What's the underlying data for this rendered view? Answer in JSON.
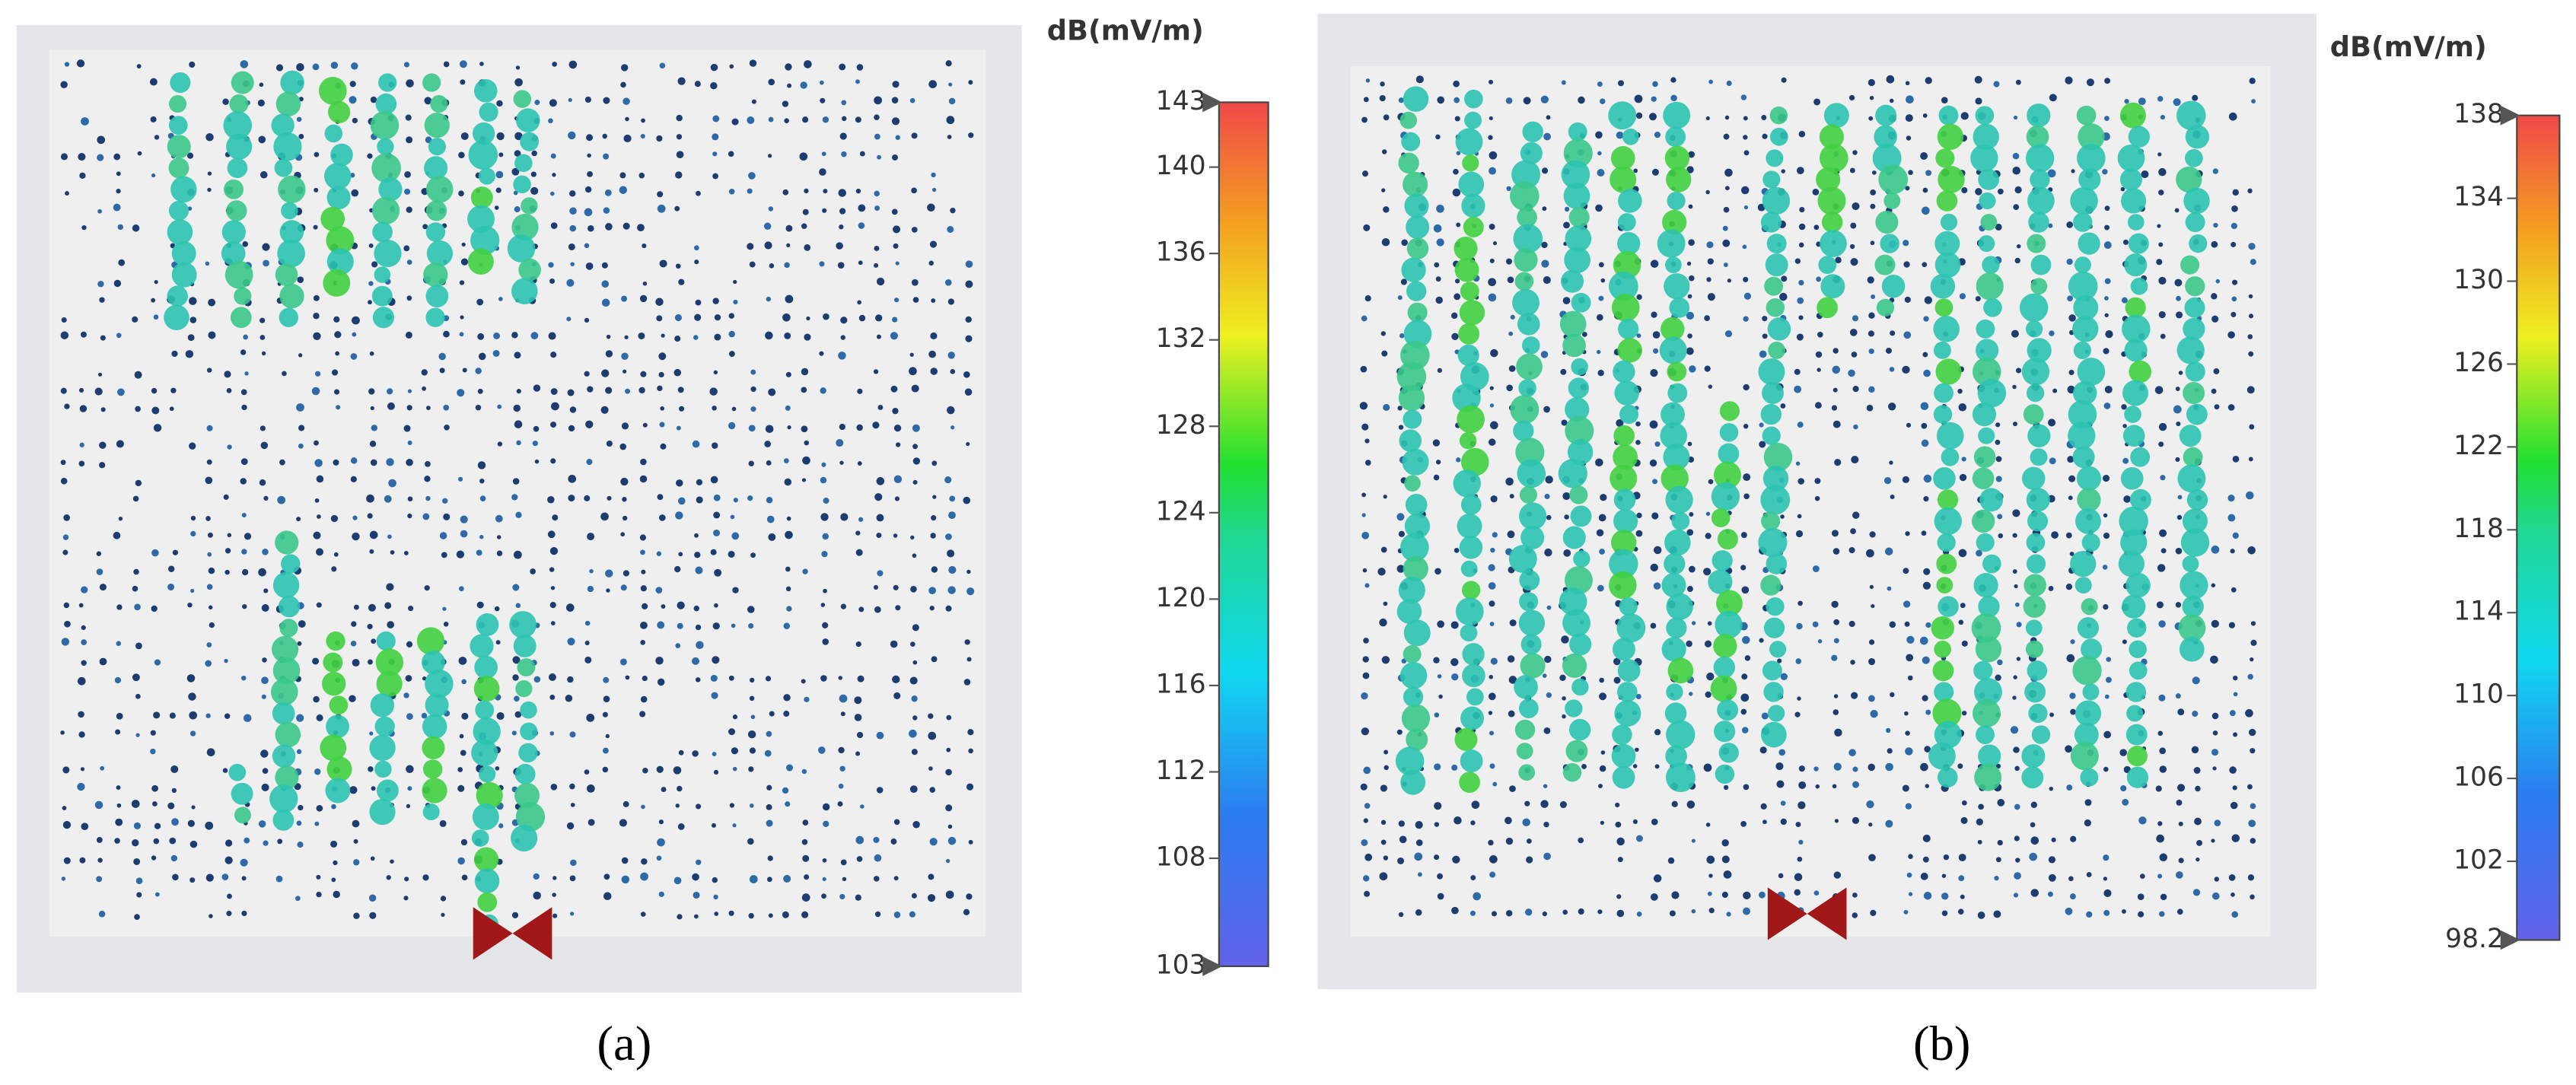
{
  "panels": [
    {
      "unit": "dB(mV/m)",
      "ticks": [
        143,
        140,
        136,
        132,
        128,
        124,
        120,
        116,
        112,
        108,
        103
      ],
      "caption": "(a)"
    },
    {
      "unit": "dB(mV/m)",
      "ticks": [
        138,
        134,
        130,
        126,
        122,
        118,
        114,
        110,
        106,
        102,
        98.2
      ],
      "caption": "(b)"
    }
  ]
}
